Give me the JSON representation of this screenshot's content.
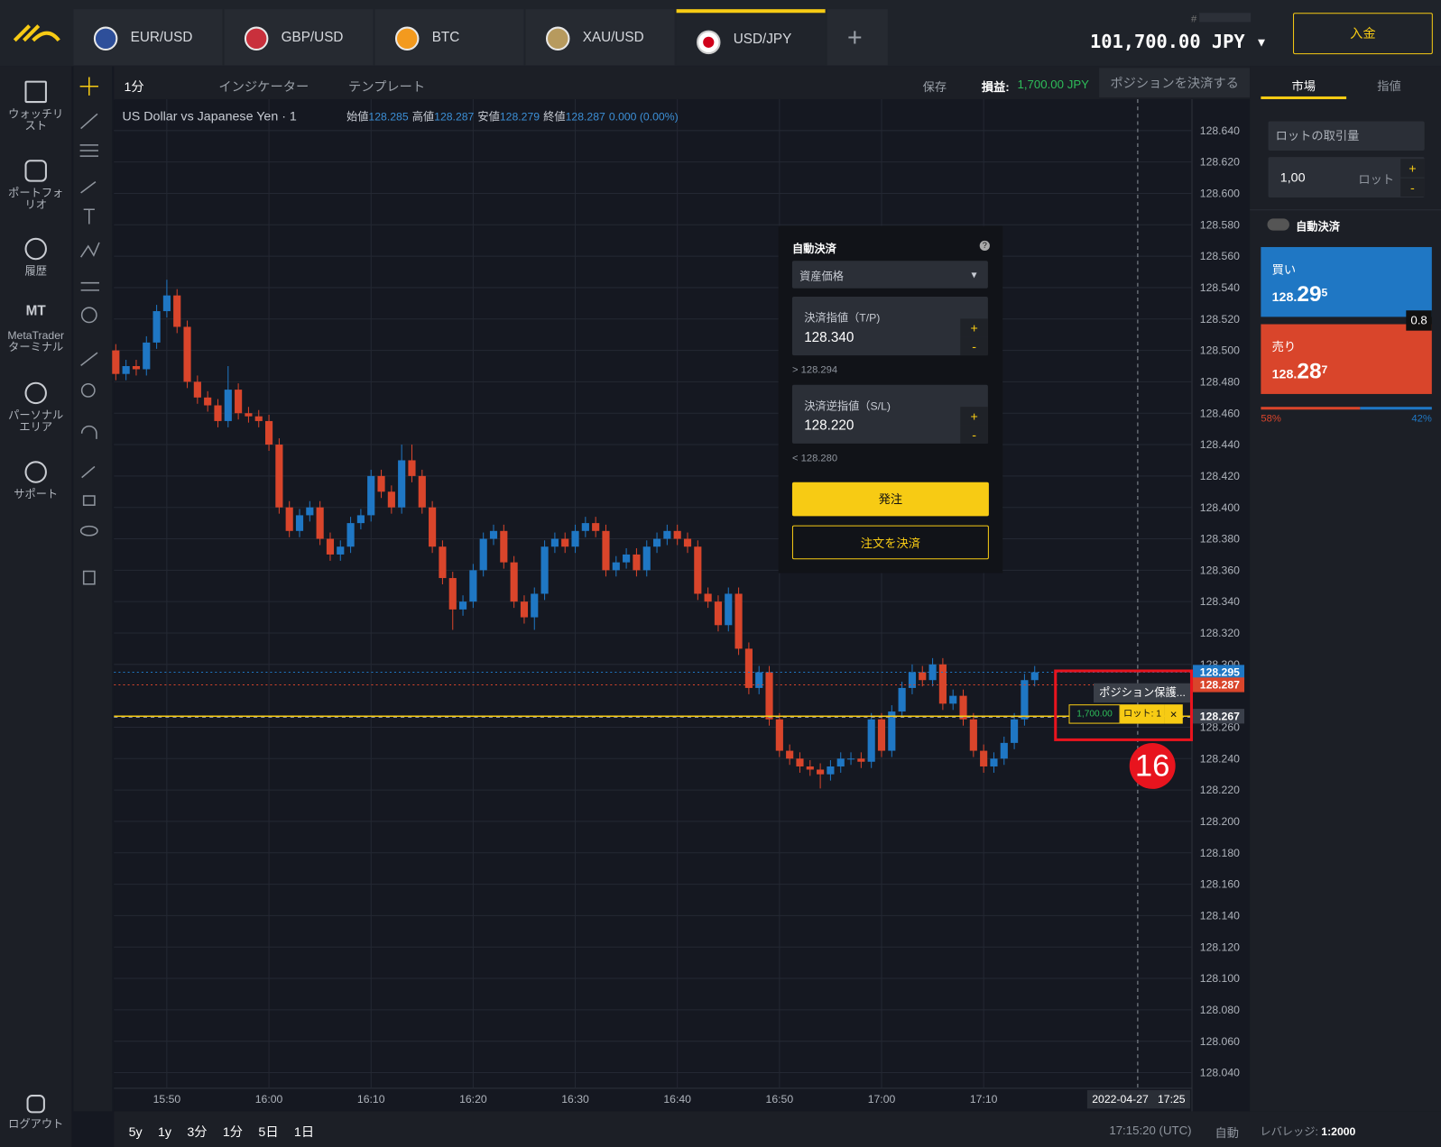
{
  "top_bar": {
    "tabs": [
      "EUR/USD",
      "GBP/USD",
      "BTC",
      "XAU/USD",
      "USD/JPY"
    ],
    "account_label": "#",
    "balance": "101,700.00 JPY",
    "deposit_button": "入金"
  },
  "sidebar": {
    "items": [
      "ウォッチリスト",
      "ポートフォリオ",
      "履歴",
      "MetaTraderターミナル",
      "パーソナルエリア",
      "サポート"
    ],
    "mt_icon": "MT",
    "logout": "ログアウト"
  },
  "toolbar": {
    "interval": "1分",
    "indicators": "インジケーター",
    "templates": "テンプレート",
    "save": "保存",
    "pnl_label": "損益:",
    "pnl_value": "1,700.00 JPY",
    "close_position": "ポジションを決済する"
  },
  "chart_data": {
    "type": "candlestick",
    "title": "US Dollar vs Japanese Yen · 1",
    "legend": [
      {
        "label": "始値",
        "value": "128.285"
      },
      {
        "label": "高値",
        "value": "128.287"
      },
      {
        "label": "安値",
        "value": "128.279"
      },
      {
        "label": "終値",
        "value": "128.287"
      }
    ],
    "change": "0.000 (0.00%)",
    "up_color": "#1f77c4",
    "down_color": "#d9452b",
    "categories": [
      null,
      null,
      null,
      null,
      null,
      "15:50",
      null,
      null,
      null,
      null,
      null,
      null,
      null,
      null,
      null,
      "16:00",
      null,
      null,
      null,
      null,
      null,
      null,
      null,
      null,
      null,
      "16:10",
      null,
      null,
      null,
      null,
      null,
      null,
      null,
      null,
      null,
      "16:20",
      null,
      null,
      null,
      null,
      null,
      null,
      null,
      null,
      null,
      "16:30",
      null,
      null,
      null,
      null,
      null,
      null,
      null,
      null,
      null,
      "16:40",
      null,
      null,
      null,
      null,
      null,
      null,
      null,
      null,
      null,
      "16:50",
      null,
      null,
      null,
      null,
      null,
      null,
      null,
      null,
      null,
      "17:00",
      null,
      null,
      null,
      null,
      null,
      null,
      null,
      null,
      null,
      "17:10",
      null,
      null,
      null,
      null,
      null
    ],
    "candles": [
      [
        128.5,
        128.504,
        128.481,
        128.485
      ],
      [
        128.485,
        128.494,
        128.481,
        128.49
      ],
      [
        128.49,
        128.494,
        128.484,
        128.488
      ],
      [
        128.488,
        128.509,
        128.484,
        128.505
      ],
      [
        128.505,
        128.529,
        128.501,
        128.525
      ],
      [
        128.525,
        128.545,
        128.521,
        128.535
      ],
      [
        128.535,
        128.539,
        128.511,
        128.515
      ],
      [
        128.515,
        128.519,
        128.476,
        128.48
      ],
      [
        128.48,
        128.484,
        128.466,
        128.47
      ],
      [
        128.47,
        128.474,
        128.461,
        128.465
      ],
      [
        128.465,
        128.469,
        128.451,
        128.455
      ],
      [
        128.455,
        128.49,
        128.451,
        128.475
      ],
      [
        128.475,
        128.479,
        128.456,
        128.46
      ],
      [
        128.46,
        128.464,
        128.454,
        128.458
      ],
      [
        128.458,
        128.462,
        128.451,
        128.455
      ],
      [
        128.455,
        128.459,
        128.436,
        128.44
      ],
      [
        128.44,
        128.444,
        128.396,
        128.4
      ],
      [
        128.4,
        128.404,
        128.381,
        128.385
      ],
      [
        128.385,
        128.399,
        128.381,
        128.395
      ],
      [
        128.395,
        128.404,
        128.391,
        128.4
      ],
      [
        128.4,
        128.404,
        128.376,
        128.38
      ],
      [
        128.38,
        128.384,
        128.366,
        128.37
      ],
      [
        128.37,
        128.379,
        128.366,
        128.375
      ],
      [
        128.375,
        128.394,
        128.371,
        128.39
      ],
      [
        128.39,
        128.399,
        128.386,
        128.395
      ],
      [
        128.395,
        128.424,
        128.391,
        128.42
      ],
      [
        128.42,
        128.424,
        128.406,
        128.41
      ],
      [
        128.41,
        128.414,
        128.396,
        128.4
      ],
      [
        128.4,
        128.44,
        128.396,
        128.43
      ],
      [
        128.43,
        128.44,
        128.416,
        128.42
      ],
      [
        128.42,
        128.424,
        128.396,
        128.4
      ],
      [
        128.4,
        128.404,
        128.371,
        128.375
      ],
      [
        128.375,
        128.379,
        128.351,
        128.355
      ],
      [
        128.355,
        128.359,
        128.322,
        128.335
      ],
      [
        128.335,
        128.344,
        128.331,
        128.34
      ],
      [
        128.34,
        128.364,
        128.336,
        128.36
      ],
      [
        128.36,
        128.384,
        128.356,
        128.38
      ],
      [
        128.38,
        128.389,
        128.376,
        128.385
      ],
      [
        128.385,
        128.389,
        128.361,
        128.365
      ],
      [
        128.365,
        128.369,
        128.336,
        128.34
      ],
      [
        128.34,
        128.344,
        128.326,
        128.33
      ],
      [
        128.33,
        128.349,
        128.322,
        128.345
      ],
      [
        128.345,
        128.379,
        128.341,
        128.375
      ],
      [
        128.375,
        128.384,
        128.371,
        128.38
      ],
      [
        128.38,
        128.384,
        128.371,
        128.375
      ],
      [
        128.375,
        128.389,
        128.371,
        128.385
      ],
      [
        128.385,
        128.394,
        128.381,
        128.39
      ],
      [
        128.39,
        128.394,
        128.381,
        128.385
      ],
      [
        128.385,
        128.389,
        128.356,
        128.36
      ],
      [
        128.36,
        128.369,
        128.356,
        128.365
      ],
      [
        128.365,
        128.374,
        128.361,
        128.37
      ],
      [
        128.37,
        128.374,
        128.356,
        128.36
      ],
      [
        128.36,
        128.379,
        128.356,
        128.375
      ],
      [
        128.375,
        128.384,
        128.371,
        128.38
      ],
      [
        128.38,
        128.389,
        128.376,
        128.385
      ],
      [
        128.385,
        128.389,
        128.376,
        128.38
      ],
      [
        128.38,
        128.384,
        128.371,
        128.375
      ],
      [
        128.375,
        128.379,
        128.341,
        128.345
      ],
      [
        128.345,
        128.349,
        128.336,
        128.34
      ],
      [
        128.34,
        128.344,
        128.321,
        128.325
      ],
      [
        128.325,
        128.349,
        128.321,
        128.345
      ],
      [
        128.345,
        128.349,
        128.306,
        128.31
      ],
      [
        128.31,
        128.314,
        128.281,
        128.285
      ],
      [
        128.285,
        128.299,
        128.281,
        128.295
      ],
      [
        128.295,
        128.299,
        128.261,
        128.265
      ],
      [
        128.265,
        128.269,
        128.241,
        128.245
      ],
      [
        128.245,
        128.249,
        128.236,
        128.24
      ],
      [
        128.24,
        128.244,
        128.231,
        128.235
      ],
      [
        128.235,
        128.239,
        128.229,
        128.233
      ],
      [
        128.233,
        128.237,
        128.221,
        128.23
      ],
      [
        128.23,
        128.239,
        128.226,
        128.235
      ],
      [
        128.235,
        128.244,
        128.231,
        128.24
      ],
      [
        128.24,
        128.244,
        128.236,
        128.24
      ],
      [
        128.24,
        128.244,
        128.234,
        128.238
      ],
      [
        128.238,
        128.269,
        128.234,
        128.265
      ],
      [
        128.265,
        128.269,
        128.241,
        128.245
      ],
      [
        128.245,
        128.274,
        128.241,
        128.27
      ],
      [
        128.27,
        128.289,
        128.266,
        128.285
      ],
      [
        128.285,
        128.3,
        128.281,
        128.295
      ],
      [
        128.295,
        128.299,
        128.286,
        128.29
      ],
      [
        128.29,
        128.304,
        128.286,
        128.3
      ],
      [
        128.3,
        128.304,
        128.271,
        128.275
      ],
      [
        128.275,
        128.284,
        128.271,
        128.28
      ],
      [
        128.28,
        128.284,
        128.261,
        128.265
      ],
      [
        128.265,
        128.269,
        128.241,
        128.245
      ],
      [
        128.245,
        128.249,
        128.231,
        128.235
      ],
      [
        128.235,
        128.244,
        128.231,
        128.24
      ],
      [
        128.24,
        128.254,
        128.236,
        128.25
      ],
      [
        128.25,
        128.269,
        128.246,
        128.265
      ],
      [
        128.265,
        128.294,
        128.261,
        128.29
      ],
      [
        128.29,
        128.299,
        128.286,
        128.295
      ]
    ],
    "ylim": [
      128.03,
      128.66
    ],
    "yticks": [
      {
        "value": 128.64,
        "label": "128.640"
      },
      {
        "value": 128.62,
        "label": "128.620"
      },
      {
        "value": 128.6,
        "label": "128.600"
      },
      {
        "value": 128.58,
        "label": "128.580"
      },
      {
        "value": 128.56,
        "label": "128.560"
      },
      {
        "value": 128.54,
        "label": "128.540"
      },
      {
        "value": 128.52,
        "label": "128.520"
      },
      {
        "value": 128.5,
        "label": "128.500"
      },
      {
        "value": 128.48,
        "label": "128.480"
      },
      {
        "value": 128.46,
        "label": "128.460"
      },
      {
        "value": 128.44,
        "label": "128.440"
      },
      {
        "value": 128.42,
        "label": "128.420"
      },
      {
        "value": 128.4,
        "label": "128.400"
      },
      {
        "value": 128.38,
        "label": "128.380"
      },
      {
        "value": 128.36,
        "label": "128.360"
      },
      {
        "value": 128.34,
        "label": "128.340"
      },
      {
        "value": 128.32,
        "label": "128.320"
      },
      {
        "value": 128.3,
        "label": "128.300"
      },
      {
        "value": 128.26,
        "label": "128.260"
      },
      {
        "value": 128.24,
        "label": "128.240"
      },
      {
        "value": 128.22,
        "label": "128.220"
      },
      {
        "value": 128.2,
        "label": "128.200"
      },
      {
        "value": 128.18,
        "label": "128.180"
      },
      {
        "value": 128.16,
        "label": "128.160"
      },
      {
        "value": 128.14,
        "label": "128.140"
      },
      {
        "value": 128.12,
        "label": "128.120"
      },
      {
        "value": 128.1,
        "label": "128.100"
      },
      {
        "value": 128.08,
        "label": "128.080"
      },
      {
        "value": 128.06,
        "label": "128.060"
      },
      {
        "value": 128.04,
        "label": "128.040"
      }
    ],
    "price_lines": [
      {
        "value": 128.295,
        "label": "128.295",
        "color": "#1f77c4"
      },
      {
        "value": 128.287,
        "label": "128.287",
        "color": "#d9452b"
      },
      {
        "value": 128.267,
        "label": "128.267",
        "color": "#3a3f4a"
      }
    ],
    "grid": true,
    "crosshair": {
      "date": "2022-04-27",
      "time": "17:25"
    },
    "position": {
      "pnl": "1,700.00",
      "lot": "ロット: 1",
      "close": "×",
      "tooltip": "ポジション保護..."
    },
    "annotation": "16"
  },
  "order_popup": {
    "title": "自動決済",
    "help": "?",
    "mode": "資産価格",
    "tp_label": "決済指値（T/P)",
    "tp_value": "128.340",
    "tp_hint": "> 128.294",
    "sl_label": "決済逆指値（S/L)",
    "sl_value": "128.220",
    "sl_hint": "< 128.280",
    "plus": "+",
    "minus": "-",
    "submit": "発注",
    "close": "注文を決済"
  },
  "trade_panel": {
    "tabs": [
      "市場",
      "指値"
    ],
    "lot_label": "ロットの取引量",
    "lot_value": "1,00",
    "lot_unit": "ロット",
    "auto_close": "自動決済",
    "buy": {
      "label": "買い",
      "prefix": "128.",
      "main": "29",
      "sup": "5"
    },
    "sell": {
      "label": "売り",
      "prefix": "128.",
      "main": "28",
      "sup": "7"
    },
    "spread": "0.8",
    "sentiment": {
      "sell": {
        "value": 58,
        "label": "58%"
      },
      "buy": {
        "value": 42,
        "label": "42%"
      }
    }
  },
  "bottom_bar": {
    "ranges": [
      "5y",
      "1y",
      "3分",
      "1分",
      "5日",
      "1日"
    ],
    "clock": "17:15:20 (UTC)",
    "auto": "自動",
    "leverage_label": "レバレッジ:",
    "leverage_value": "1:2000"
  }
}
